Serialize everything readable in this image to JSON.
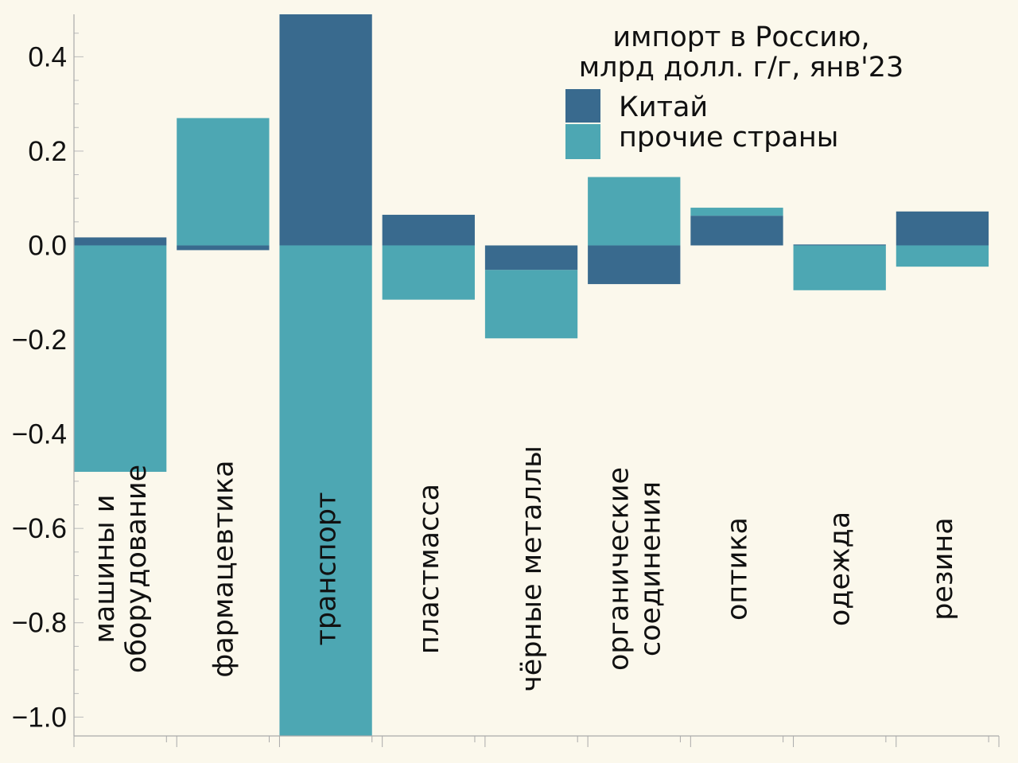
{
  "chart_data": {
    "type": "bar",
    "stacked": true,
    "title": "импорт в Россию,",
    "subtitle": "млрд долл. г/г, янв'23",
    "xlabel": "",
    "ylabel": "",
    "ylim": [
      -1.04,
      0.49
    ],
    "yticks": [
      0.4,
      0.2,
      0.0,
      -0.2,
      -0.4,
      -0.6,
      -0.8,
      -1.0
    ],
    "ytick_labels": [
      "0.4",
      "0.2",
      "0.0",
      "−0.2",
      "−0.4",
      "−0.6",
      "−0.8",
      "−1.0"
    ],
    "legend_position": "top-right",
    "categories": [
      [
        "машины и",
        "оборудование"
      ],
      [
        "фармацевтика"
      ],
      [
        "транспорт"
      ],
      [
        "пластмасса"
      ],
      [
        "чёрные металлы"
      ],
      [
        "органические",
        "соединения"
      ],
      [
        "оптика"
      ],
      [
        "одежда"
      ],
      [
        "резина"
      ]
    ],
    "series": [
      {
        "name": "Китай",
        "color": "#396a8e",
        "values": [
          0.017,
          -0.01,
          0.49,
          0.065,
          -0.052,
          -0.082,
          0.063,
          0.002,
          0.072
        ]
      },
      {
        "name": "прочие страны",
        "color": "#4da7b3",
        "values": [
          -0.48,
          0.27,
          -1.04,
          -0.115,
          -0.145,
          0.145,
          0.017,
          -0.095,
          -0.045
        ]
      }
    ]
  }
}
